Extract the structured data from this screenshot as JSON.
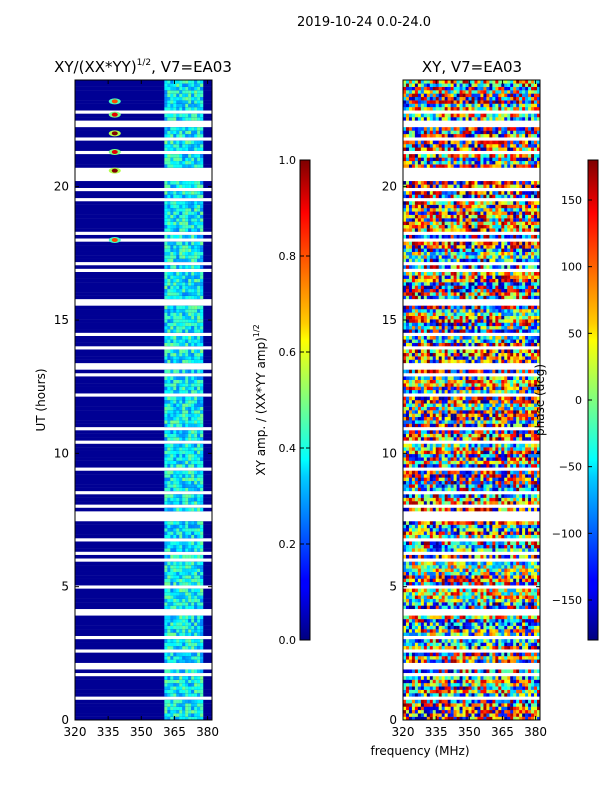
{
  "suptitle": "2019-10-24 0.0-24.0",
  "xlabel": "frequency (MHz)",
  "colors": {
    "frame": "#000000",
    "gap": "#ffffff"
  },
  "chart_data": [
    {
      "type": "heatmap",
      "title_main": "XY/(XX*YY)",
      "title_exp": "1/2",
      "title_rest": ", V7=EA03",
      "ylabel": "UT (hours)",
      "xlim": [
        320,
        382
      ],
      "ylim": [
        0,
        24
      ],
      "xticks": [
        320,
        335,
        350,
        365,
        380
      ],
      "yticks": [
        0,
        5,
        10,
        15,
        20
      ],
      "colorbar": {
        "label_main": "XY amp. / (XX*YY amp)",
        "label_exp": "1/2",
        "range": [
          0.0,
          1.0
        ],
        "ticks": [
          "0.0",
          "0.2",
          "0.4",
          "0.6",
          "0.8",
          "1.0"
        ],
        "colormap": "jet"
      },
      "pattern": "mostly near 0 (dark blue) below 360 MHz; values ~0.25-0.5 in a band 360-378 MHz; brighter spots near 338 MHz at ~18 h and 20.5-23 h; many white gaps in time",
      "hotspots": [
        {
          "ut": 18.0,
          "freq": 338,
          "value": 0.8
        },
        {
          "ut": 20.6,
          "freq": 338,
          "value": 1.0
        },
        {
          "ut": 21.3,
          "freq": 338,
          "value": 0.9
        },
        {
          "ut": 22.0,
          "freq": 338,
          "value": 1.0
        },
        {
          "ut": 22.7,
          "freq": 338,
          "value": 0.9
        },
        {
          "ut": 23.2,
          "freq": 338,
          "value": 0.8
        }
      ]
    },
    {
      "type": "heatmap",
      "title_main": "XY, V7=EA03",
      "xlim": [
        320,
        382
      ],
      "ylim": [
        0,
        24
      ],
      "xticks": [
        320,
        335,
        350,
        365,
        380
      ],
      "yticks": [
        0,
        5,
        10,
        15,
        20
      ],
      "colorbar": {
        "label": "phase (deg)",
        "range": [
          -180,
          180
        ],
        "ticks": [
          "−150",
          "−100",
          "−50",
          "0",
          "50",
          "100",
          "150"
        ],
        "tick_values": [
          -150,
          -100,
          -50,
          0,
          50,
          100,
          150
        ],
        "colormap": "jet"
      },
      "pattern": "noisy phase spanning the full -180..180 range, banded by time row"
    }
  ]
}
